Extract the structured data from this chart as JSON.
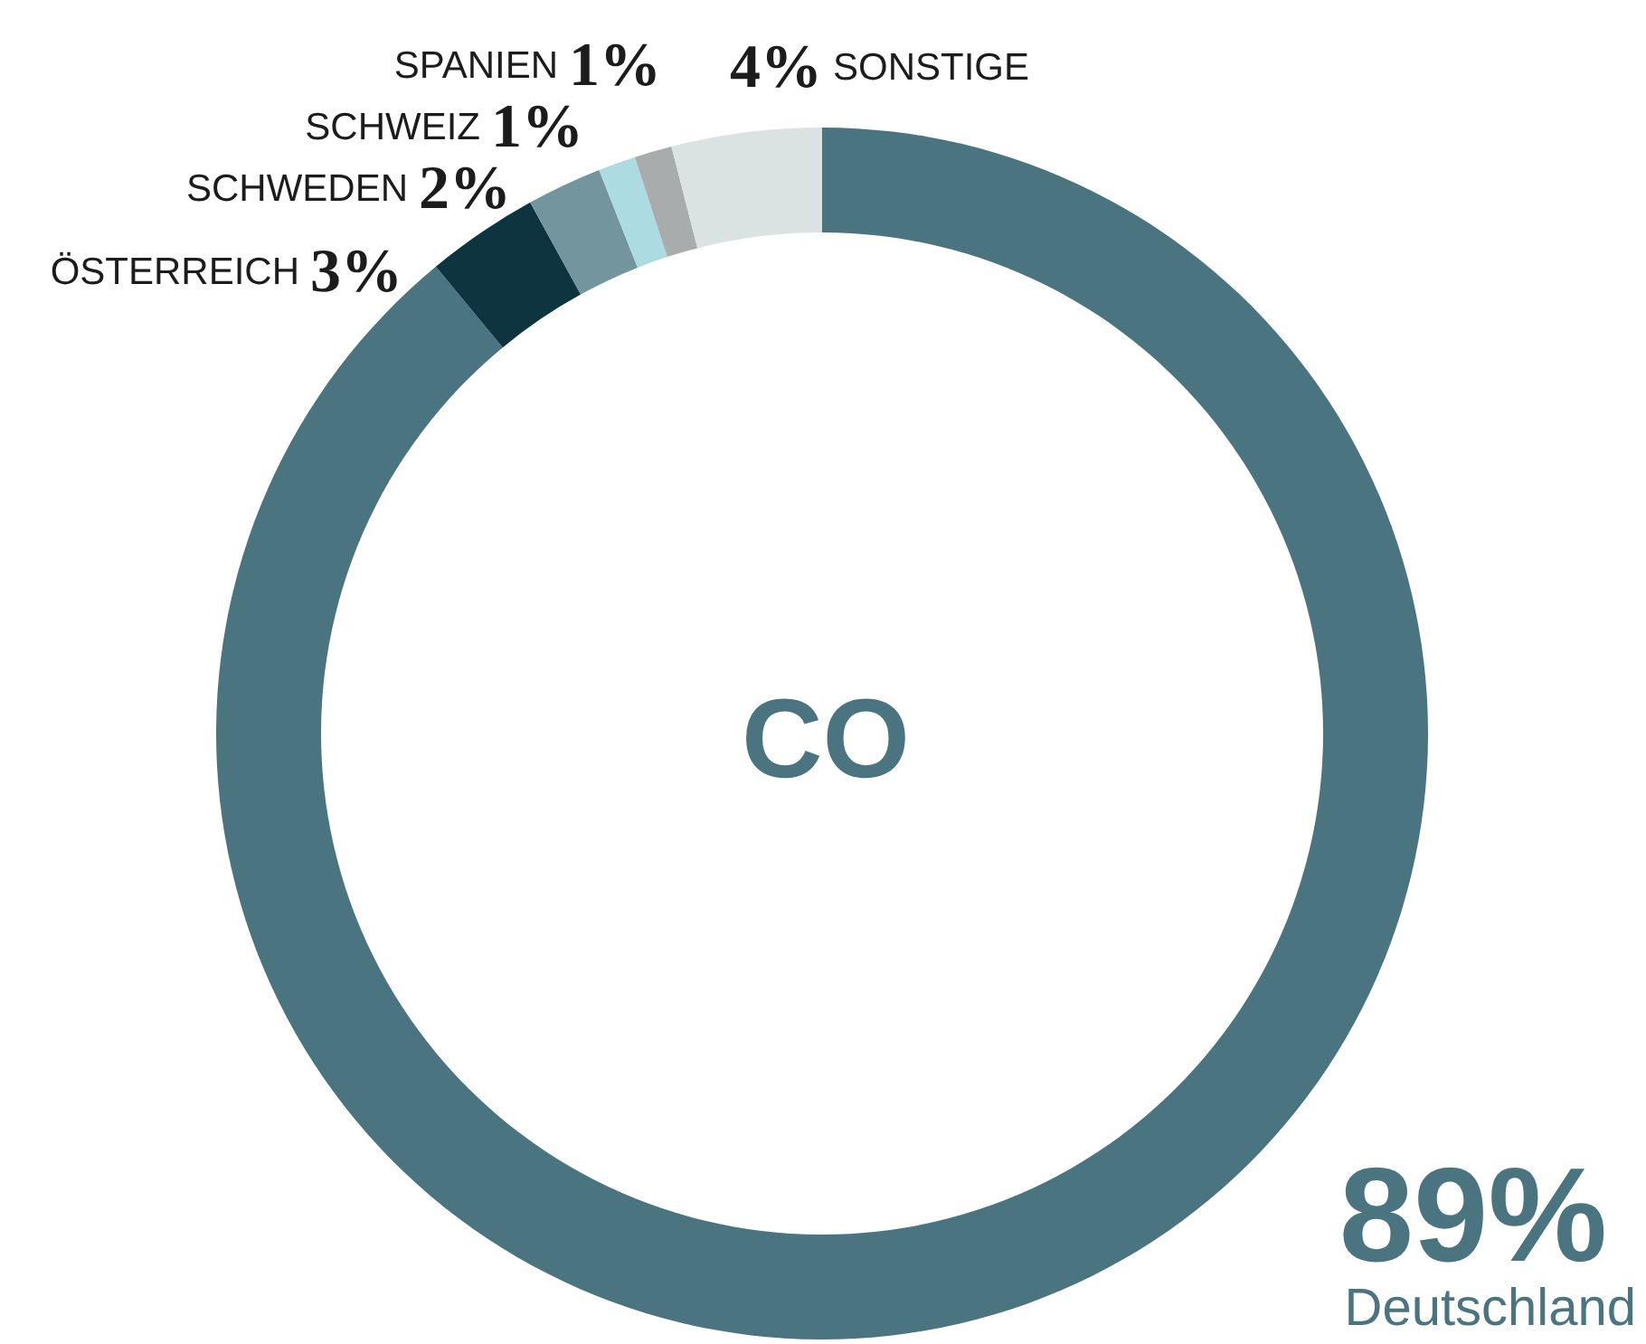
{
  "chart_data": {
    "type": "donut",
    "title": "CO",
    "categories": [
      "Deutschland",
      "ÖSTERREICH",
      "SCHWEDEN",
      "SCHWEIZ",
      "SPANIEN",
      "SONSTIGE"
    ],
    "values": [
      89,
      3,
      2,
      1,
      1,
      4
    ],
    "colors": [
      "#4a7480",
      "#0e3440",
      "#73969e",
      "#acdce2",
      "#a9acad",
      "#dae2e2"
    ],
    "value_labels": [
      "89%",
      "3%",
      "2%",
      "1%",
      "1%",
      "4%"
    ]
  }
}
